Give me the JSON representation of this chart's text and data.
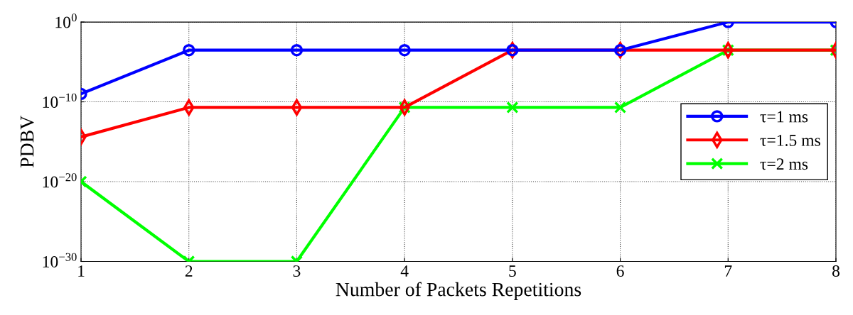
{
  "chart_data": {
    "type": "line",
    "xlabel": "Number of Packets Repetitions",
    "ylabel": "PDBV",
    "log": "y",
    "x": [
      1,
      2,
      3,
      4,
      5,
      6,
      7,
      8
    ],
    "series": [
      {
        "name": "τ=1 ms",
        "color": "#0000ff",
        "marker": "circle",
        "values": [
          1e-09,
          0.0003,
          0.0003,
          0.0003,
          0.0003,
          0.0003,
          1,
          1
        ]
      },
      {
        "name": "τ=1.5 ms",
        "color": "#ff0000",
        "marker": "diamond",
        "values": [
          4e-15,
          2e-11,
          2e-11,
          2e-11,
          0.0003,
          0.0003,
          0.0003,
          0.0003
        ]
      },
      {
        "name": "τ=2 ms",
        "color": "#00ff00",
        "marker": "cross",
        "values": [
          1e-20,
          1e-30,
          1e-30,
          2e-11,
          2e-11,
          2e-11,
          0.0003,
          0.0003
        ]
      }
    ],
    "xlim": [
      1,
      8
    ],
    "xticks": [
      1,
      2,
      3,
      4,
      5,
      6,
      7,
      8
    ],
    "ylim": [
      1e-30,
      1
    ],
    "yticks": [
      {
        "value": 1e-30,
        "label": "10$^{−30}$"
      },
      {
        "value": 1e-20,
        "label": "10$^{−20}$"
      },
      {
        "value": 1e-10,
        "label": "10$^{−10}$"
      },
      {
        "value": 1,
        "label": "10$^{0}$"
      }
    ],
    "grid": true,
    "legend": "center right",
    "line_style": "solid"
  }
}
